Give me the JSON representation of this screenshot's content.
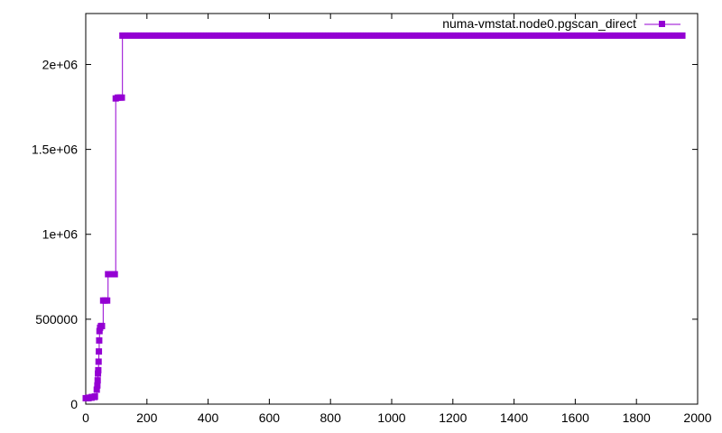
{
  "chart_data": {
    "type": "line",
    "title": "",
    "xlabel": "",
    "ylabel": "",
    "xlim": [
      0,
      2000
    ],
    "ylim": [
      0,
      2300000
    ],
    "xticks": [
      0,
      200,
      400,
      600,
      800,
      1000,
      1200,
      1400,
      1600,
      1800,
      2000
    ],
    "xtick_labels": [
      "0",
      "200",
      "400",
      "600",
      "800",
      "1000",
      "1200",
      "1400",
      "1600",
      "1800",
      "2000"
    ],
    "yticks": [
      0,
      500000,
      1000000,
      1500000,
      2000000
    ],
    "ytick_labels": [
      "0",
      "500000",
      "1e+06",
      "1.5e+06",
      "2e+06"
    ],
    "grid": false,
    "legend_position": "top-right",
    "series": [
      {
        "name": "numa-vmstat.node0.pgscan_direct",
        "color": "#9400d3",
        "marker": "square",
        "step": true,
        "points": [
          [
            0,
            35000
          ],
          [
            10,
            38000
          ],
          [
            20,
            42000
          ],
          [
            30,
            45000
          ],
          [
            36,
            85000
          ],
          [
            38,
            110000
          ],
          [
            39,
            140000
          ],
          [
            40,
            180000
          ],
          [
            41,
            200000
          ],
          [
            42,
            250000
          ],
          [
            43,
            310000
          ],
          [
            44,
            375000
          ],
          [
            45,
            430000
          ],
          [
            47,
            450000
          ],
          [
            50,
            460000
          ],
          [
            53,
            460000
          ],
          [
            57,
            610000
          ],
          [
            63,
            610000
          ],
          [
            70,
            610000
          ],
          [
            73,
            765000
          ],
          [
            80,
            765000
          ],
          [
            88,
            765000
          ],
          [
            95,
            765000
          ],
          [
            98,
            1800000
          ],
          [
            105,
            1805000
          ],
          [
            112,
            1805000
          ],
          [
            118,
            1805000
          ],
          [
            120,
            2170000
          ],
          [
            1950,
            2170000
          ]
        ]
      }
    ]
  }
}
